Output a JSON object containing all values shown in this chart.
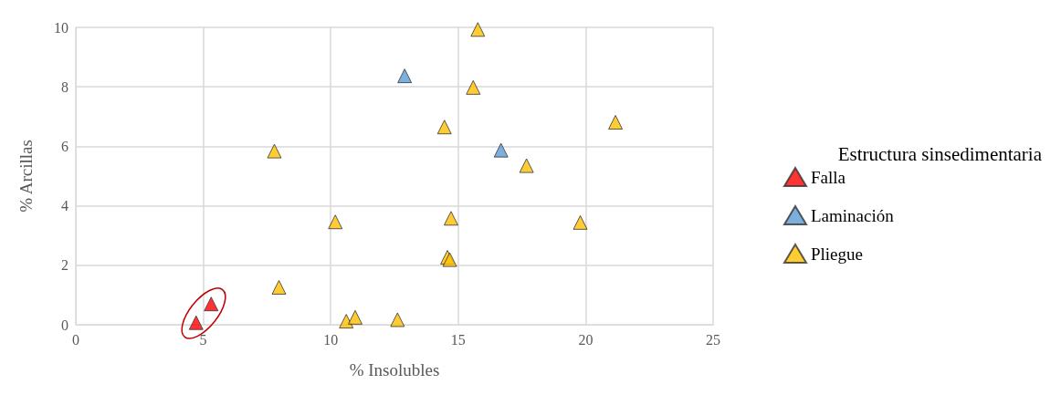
{
  "chart_data": {
    "type": "scatter",
    "xlabel": "% Insolubles",
    "ylabel": "% Arcillas",
    "legend_title": "Estructura sinsedimentaria",
    "xlim": [
      0,
      25
    ],
    "xticks": [
      0,
      5,
      10,
      15,
      20,
      25
    ],
    "ylim": [
      0,
      10
    ],
    "yticks": [
      0,
      2,
      4,
      6,
      8,
      10
    ],
    "grid": true,
    "legend": "right",
    "marker": "triangle",
    "series": [
      {
        "name": "Falla",
        "color": "#ff0000",
        "x": [
          4.72,
          5.31
        ],
        "values": [
          0.07,
          0.7
        ]
      },
      {
        "name": "Laminación",
        "color": "#5b9bd5",
        "x": [
          12.9,
          16.68
        ],
        "values": [
          8.37,
          5.87
        ]
      },
      {
        "name": "Pliegue",
        "color": "#ffc000",
        "x": [
          15.77,
          15.59,
          14.46,
          21.17,
          7.79,
          17.68,
          10.18,
          14.72,
          19.79,
          14.58,
          14.67,
          7.97,
          10.61,
          10.96,
          12.62
        ],
        "values": [
          9.93,
          7.98,
          6.65,
          6.81,
          5.84,
          5.35,
          3.46,
          3.58,
          3.44,
          2.27,
          2.19,
          1.26,
          0.12,
          0.25,
          0.17
        ]
      }
    ]
  }
}
